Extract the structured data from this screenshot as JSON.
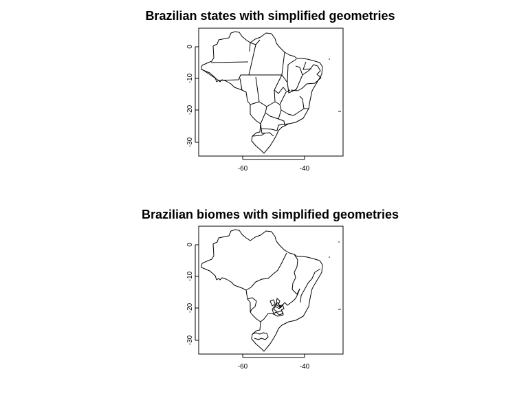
{
  "panels": [
    {
      "title": "Brazilian states with simplified geometries",
      "x_ticks": [
        "-60",
        "-40"
      ],
      "y_ticks": [
        "0",
        "-10",
        "-20",
        "-30"
      ],
      "map_layer": "states"
    },
    {
      "title": "Brazilian biomes with simplified geometries",
      "x_ticks": [
        "-60",
        "-40"
      ],
      "y_ticks": [
        "0",
        "-10",
        "-20",
        "-30"
      ],
      "map_layer": "biomes"
    }
  ],
  "chart_data": [
    {
      "type": "map",
      "title": "Brazilian states with simplified geometries",
      "xlabel": "",
      "ylabel": "",
      "xlim": [
        -75,
        -28
      ],
      "ylim": [
        -35,
        6
      ],
      "x_ticks": [
        -60,
        -40
      ],
      "y_ticks": [
        0,
        -10,
        -20,
        -30
      ],
      "grid": false
    },
    {
      "type": "map",
      "title": "Brazilian biomes with simplified geometries",
      "xlabel": "",
      "ylabel": "",
      "xlim": [
        -75,
        -28
      ],
      "ylim": [
        -35,
        6
      ],
      "x_ticks": [
        -60,
        -40
      ],
      "y_ticks": [
        0,
        -10,
        -20,
        -30
      ],
      "grid": false
    }
  ]
}
